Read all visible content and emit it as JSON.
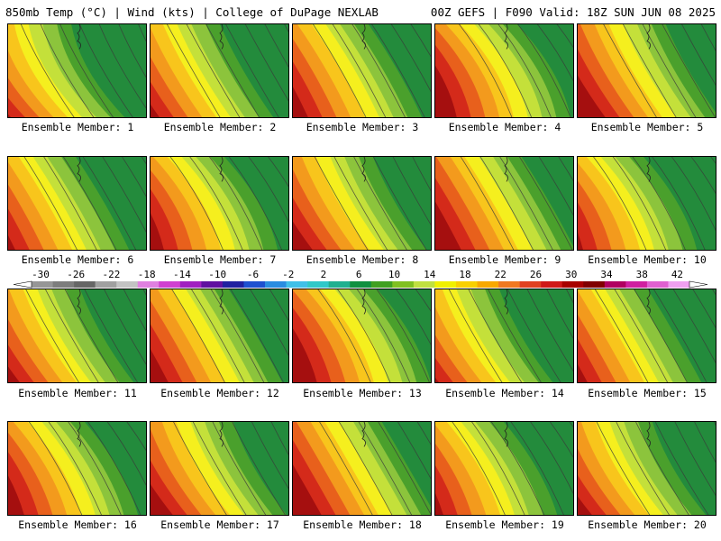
{
  "header": {
    "left": "850mb Temp (°C) | Wind (kts) | College of DuPage NEXLAB",
    "right": "00Z GEFS | F090 Valid: 18Z SUN JUN 08 2025"
  },
  "members": [
    "Ensemble Member: 1",
    "Ensemble Member: 2",
    "Ensemble Member: 3",
    "Ensemble Member: 4",
    "Ensemble Member: 5",
    "Ensemble Member: 6",
    "Ensemble Member: 7",
    "Ensemble Member: 8",
    "Ensemble Member: 9",
    "Ensemble Member: 10",
    "Ensemble Member: 11",
    "Ensemble Member: 12",
    "Ensemble Member: 13",
    "Ensemble Member: 14",
    "Ensemble Member: 15",
    "Ensemble Member: 16",
    "Ensemble Member: 17",
    "Ensemble Member: 18",
    "Ensemble Member: 19",
    "Ensemble Member: 20"
  ],
  "colorbar": {
    "ticks": [
      "-30",
      "-26",
      "-22",
      "-18",
      "-14",
      "-10",
      "-6",
      "-2",
      "2",
      "6",
      "10",
      "14",
      "18",
      "22",
      "26",
      "30",
      "34",
      "38",
      "42"
    ],
    "colors": [
      "#969696",
      "#7d7d7d",
      "#666666",
      "#a0a0a0",
      "#c3c3c3",
      "#e080e0",
      "#d040d0",
      "#a020c0",
      "#6010a0",
      "#2020a0",
      "#1e50d0",
      "#2a8ce0",
      "#40c0e8",
      "#30c8c8",
      "#20b090",
      "#109040",
      "#40a020",
      "#80c020",
      "#c0e040",
      "#f0f000",
      "#f8d000",
      "#f8a800",
      "#f07820",
      "#e04020",
      "#d01818",
      "#a80000",
      "#800000",
      "#b00060",
      "#d020a0",
      "#e060d0",
      "#f0a0f0"
    ]
  },
  "palette": {
    "dark_red": "#a50f0f",
    "red": "#d42a1a",
    "orange_red": "#e8601c",
    "orange": "#f39a1d",
    "yellow_orange": "#f8c51c",
    "yellow": "#f5ef1e",
    "yellow_green": "#c4e03a",
    "light_green": "#8cc43c",
    "green": "#4aa02c",
    "dark_green": "#238b3c",
    "teal": "#20a070"
  }
}
